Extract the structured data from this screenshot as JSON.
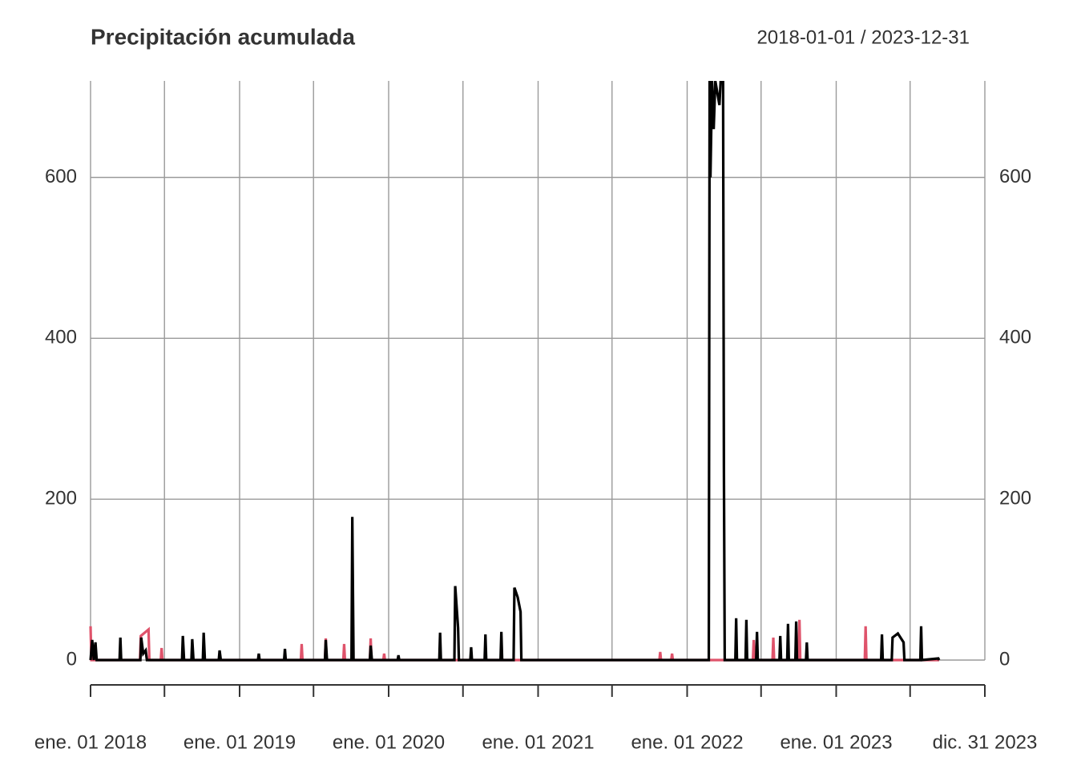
{
  "chart_data": {
    "type": "line",
    "title": "Precipitación acumulada",
    "subtitle": "2018-01-01 / 2023-12-31",
    "xlim": [
      "2018-01-01",
      "2023-12-31"
    ],
    "xticks": [
      {
        "value": "2018-01-01",
        "label": "ene. 01 2018"
      },
      {
        "value": "2019-01-01",
        "label": "ene. 01 2019"
      },
      {
        "value": "2020-01-01",
        "label": "ene. 01 2020"
      },
      {
        "value": "2021-01-01",
        "label": "ene. 01 2021"
      },
      {
        "value": "2022-01-01",
        "label": "ene. 01 2022"
      },
      {
        "value": "2023-01-01",
        "label": "ene. 01 2023"
      },
      {
        "value": "2023-12-31",
        "label": "dic. 31 2023"
      }
    ],
    "minor_xticks": [
      "2018-07-01",
      "2019-07-01",
      "2020-07-01",
      "2021-07-01",
      "2022-07-01",
      "2023-07-01"
    ],
    "ylim": [
      0,
      720
    ],
    "yticks": [
      0,
      200,
      400,
      600
    ],
    "y2lim": [
      0,
      720
    ],
    "y2ticks": [
      0,
      200,
      400,
      600
    ],
    "grid": true,
    "series": [
      {
        "color": "#DF536B",
        "x": [
          "2018-01-01",
          "2018-01-03",
          "2018-05-02",
          "2018-05-04",
          "2018-05-23",
          "2018-05-25",
          "2018-06-22",
          "2018-06-24",
          "2018-06-26",
          "2019-05-31",
          "2019-06-02",
          "2019-06-04",
          "2019-07-29",
          "2019-07-31",
          "2019-08-02",
          "2019-09-12",
          "2019-09-14",
          "2019-09-16",
          "2019-11-16",
          "2019-11-18",
          "2019-11-20",
          "2019-12-19",
          "2019-12-21",
          "2019-12-23",
          "2021-10-25",
          "2021-10-27",
          "2021-10-29",
          "2021-11-23",
          "2021-11-25",
          "2021-11-27",
          "2022-06-11",
          "2022-06-13",
          "2022-06-15",
          "2022-07-29",
          "2022-07-31",
          "2022-08-02",
          "2022-10-01",
          "2022-10-03",
          "2022-10-05",
          "2023-03-12",
          "2023-03-14",
          "2023-03-16",
          "2023-09-10"
        ],
        "values": [
          42,
          0,
          0,
          30,
          38,
          0,
          0,
          15,
          0,
          0,
          20,
          0,
          0,
          27,
          0,
          0,
          20,
          0,
          0,
          27,
          0,
          0,
          8,
          0,
          0,
          10,
          0,
          0,
          8,
          0,
          0,
          25,
          0,
          0,
          28,
          0,
          0,
          50,
          0,
          0,
          42,
          0,
          0
        ]
      },
      {
        "color": "#000000",
        "x": [
          "2018-01-01",
          "2018-01-05",
          "2018-01-09",
          "2018-01-13",
          "2018-01-16",
          "2018-03-13",
          "2018-03-15",
          "2018-03-17",
          "2018-05-03",
          "2018-05-05",
          "2018-05-10",
          "2018-05-16",
          "2018-05-19",
          "2018-08-13",
          "2018-08-15",
          "2018-08-18",
          "2018-09-05",
          "2018-09-07",
          "2018-09-10",
          "2018-10-03",
          "2018-10-05",
          "2018-10-08",
          "2018-11-11",
          "2018-11-13",
          "2018-11-16",
          "2019-02-15",
          "2019-02-17",
          "2019-02-19",
          "2019-04-20",
          "2019-04-22",
          "2019-04-24",
          "2019-07-29",
          "2019-07-31",
          "2019-08-03",
          "2019-10-02",
          "2019-10-04",
          "2019-10-07",
          "2019-11-16",
          "2019-11-18",
          "2019-11-21",
          "2020-01-23",
          "2020-01-25",
          "2020-01-27",
          "2020-05-04",
          "2020-05-06",
          "2020-05-08",
          "2020-06-10",
          "2020-06-12",
          "2020-06-19",
          "2020-06-21",
          "2020-07-19",
          "2020-07-21",
          "2020-07-23",
          "2020-08-23",
          "2020-08-25",
          "2020-08-27",
          "2020-10-01",
          "2020-10-03",
          "2020-10-05",
          "2020-11-02",
          "2020-11-04",
          "2020-11-12",
          "2020-11-19",
          "2020-11-21",
          "2022-02-23",
          "2022-02-25",
          "2022-02-27",
          "2022-03-03",
          "2022-03-07",
          "2022-03-11",
          "2022-03-21",
          "2022-03-24",
          "2022-03-30",
          "2022-04-01",
          "2022-04-03",
          "2022-04-29",
          "2022-05-01",
          "2022-05-03",
          "2022-05-24",
          "2022-05-26",
          "2022-05-28",
          "2022-06-19",
          "2022-06-21",
          "2022-06-23",
          "2022-08-15",
          "2022-08-17",
          "2022-08-19",
          "2022-09-03",
          "2022-09-05",
          "2022-09-07",
          "2022-09-23",
          "2022-09-25",
          "2022-09-27",
          "2022-10-19",
          "2022-10-21",
          "2022-10-23",
          "2023-04-21",
          "2023-04-23",
          "2023-04-25",
          "2023-05-17",
          "2023-05-19",
          "2023-06-01",
          "2023-06-15",
          "2023-06-17",
          "2023-07-26",
          "2023-07-28",
          "2023-07-30",
          "2023-09-08",
          "2023-09-10"
        ],
        "values": [
          0,
          25,
          0,
          22,
          0,
          0,
          28,
          0,
          0,
          28,
          8,
          12,
          0,
          0,
          30,
          0,
          0,
          26,
          0,
          0,
          34,
          0,
          0,
          12,
          0,
          0,
          8,
          0,
          0,
          14,
          0,
          0,
          25,
          0,
          0,
          178,
          0,
          0,
          18,
          0,
          0,
          6,
          0,
          0,
          34,
          0,
          0,
          92,
          40,
          0,
          0,
          16,
          0,
          0,
          32,
          0,
          0,
          35,
          0,
          0,
          90,
          78,
          60,
          0,
          0,
          720,
          600,
          720,
          660,
          720,
          690,
          720,
          720,
          240,
          0,
          0,
          52,
          0,
          0,
          50,
          0,
          0,
          35,
          0,
          0,
          30,
          0,
          0,
          45,
          0,
          0,
          48,
          0,
          0,
          22,
          0,
          0,
          32,
          0,
          0,
          28,
          33,
          22,
          0,
          0,
          42,
          0,
          2,
          0
        ]
      }
    ]
  }
}
